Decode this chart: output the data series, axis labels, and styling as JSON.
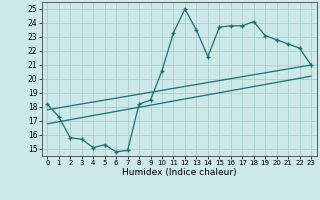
{
  "title": "",
  "xlabel": "Humidex (Indice chaleur)",
  "ylabel": "",
  "bg_color": "#cce8e8",
  "grid_color": "#aacccc",
  "line_color": "#1a7070",
  "xlim": [
    -0.5,
    23.5
  ],
  "ylim": [
    14.5,
    25.5
  ],
  "yticks": [
    15,
    16,
    17,
    18,
    19,
    20,
    21,
    22,
    23,
    24,
    25
  ],
  "xticks": [
    0,
    1,
    2,
    3,
    4,
    5,
    6,
    7,
    8,
    9,
    10,
    11,
    12,
    13,
    14,
    15,
    16,
    17,
    18,
    19,
    20,
    21,
    22,
    23
  ],
  "line1_x": [
    0,
    1,
    2,
    3,
    4,
    5,
    6,
    7,
    8,
    9,
    10,
    11,
    12,
    13,
    14,
    15,
    16,
    17,
    18,
    19,
    20,
    21,
    22,
    23
  ],
  "line1_y": [
    18.2,
    17.3,
    15.8,
    15.7,
    15.1,
    15.3,
    14.8,
    14.9,
    18.2,
    18.5,
    20.6,
    23.3,
    25.0,
    23.5,
    21.6,
    23.7,
    23.8,
    23.8,
    24.1,
    23.1,
    22.8,
    22.5,
    22.2,
    21.0
  ],
  "line2_x": [
    0,
    23
  ],
  "line2_y": [
    17.8,
    21.0
  ],
  "line3_x": [
    0,
    23
  ],
  "line3_y": [
    16.8,
    20.2
  ]
}
